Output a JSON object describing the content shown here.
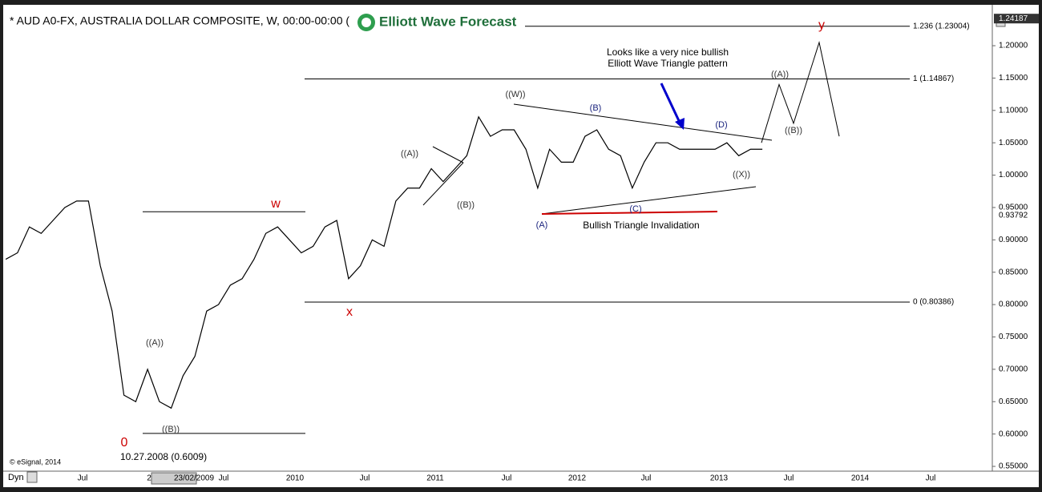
{
  "chart_data": {
    "type": "line",
    "title": "* AUD A0-FX, AUSTRALIA DOLLAR COMPOSITE, W, 00:00-00:00 (",
    "logo": "Elliott Wave Forecast",
    "source": "© eSignal, 2014",
    "corner_label": "Dyn",
    "color": "#000000",
    "x": [
      "2007-12",
      "2008-01",
      "2008-02",
      "2008-03",
      "2008-04",
      "2008-05",
      "2008-06",
      "2008-07",
      "2008-08",
      "2008-09",
      "2008-10",
      "2008-11",
      "2008-12",
      "2009-01",
      "2009-02",
      "2009-03",
      "2009-04",
      "2009-05",
      "2009-06",
      "2009-07",
      "2009-08",
      "2009-09",
      "2009-10",
      "2009-11",
      "2009-12",
      "2010-01",
      "2010-02",
      "2010-03",
      "2010-04",
      "2010-05",
      "2010-06",
      "2010-07",
      "2010-08",
      "2010-09",
      "2010-10",
      "2010-11",
      "2010-12",
      "2011-01",
      "2011-02",
      "2011-03",
      "2011-04",
      "2011-05",
      "2011-06",
      "2011-07",
      "2011-08",
      "2011-09",
      "2011-10",
      "2011-11",
      "2011-12",
      "2012-01",
      "2012-02",
      "2012-03",
      "2012-04",
      "2012-05",
      "2012-06",
      "2012-07",
      "2012-08",
      "2012-09",
      "2012-10",
      "2012-11",
      "2012-12",
      "2013-01",
      "2013-02",
      "2013-03",
      "2013-04"
    ],
    "values": [
      0.87,
      0.88,
      0.92,
      0.91,
      0.93,
      0.95,
      0.96,
      0.96,
      0.86,
      0.79,
      0.66,
      0.65,
      0.7,
      0.65,
      0.64,
      0.69,
      0.72,
      0.79,
      0.8,
      0.83,
      0.84,
      0.87,
      0.91,
      0.92,
      0.9,
      0.88,
      0.89,
      0.92,
      0.93,
      0.84,
      0.86,
      0.9,
      0.89,
      0.96,
      0.98,
      0.98,
      1.01,
      0.99,
      1.01,
      1.03,
      1.09,
      1.06,
      1.07,
      1.07,
      1.04,
      0.98,
      1.04,
      1.02,
      1.02,
      1.06,
      1.07,
      1.04,
      1.03,
      0.98,
      1.02,
      1.05,
      1.05,
      1.04,
      1.04,
      1.04,
      1.04,
      1.05,
      1.03,
      1.04,
      1.04
    ],
    "projection": [
      1.05,
      1.14,
      1.08,
      1.205,
      1.06
    ],
    "ylim": [
      0.5426,
      1.2607
    ],
    "yticks": [
      {
        "value": 0.55,
        "label": "0.55000"
      },
      {
        "value": 0.6,
        "label": "0.60000"
      },
      {
        "value": 0.65,
        "label": "0.65000"
      },
      {
        "value": 0.7,
        "label": "0.70000"
      },
      {
        "value": 0.75,
        "label": "0.75000"
      },
      {
        "value": 0.8,
        "label": "0.80000"
      },
      {
        "value": 0.85,
        "label": "0.85000"
      },
      {
        "value": 0.9,
        "label": "0.90000"
      },
      {
        "value": 0.95,
        "label": "0.95000"
      },
      {
        "value": 1.0,
        "label": "1.00000"
      },
      {
        "value": 1.05,
        "label": "1.05000"
      },
      {
        "value": 1.1,
        "label": "1.10000"
      },
      {
        "value": 1.15,
        "label": "1.15000"
      },
      {
        "value": 1.2,
        "label": "1.20000"
      }
    ],
    "axis_markers": [
      1.24187,
      0.93792
    ],
    "fib_levels": [
      {
        "value": 1.23004,
        "label": "1.236 (1.23004)"
      },
      {
        "value": 1.14867,
        "label": "1 (1.14867)"
      },
      {
        "value": 0.80386,
        "label": "0 (0.80386)"
      }
    ],
    "hlines": [
      0.9435,
      0.6009
    ],
    "x_axis_labels": [
      "Jul",
      "2",
      "23/02/2009",
      "Jul",
      "2010",
      "Jul",
      "2011",
      "Jul",
      "2012",
      "Jul",
      "2013",
      "Jul",
      "2014",
      "Jul"
    ],
    "annotations": [
      {
        "text": "0",
        "color": "#cc0000"
      },
      {
        "text": "10.27.2008  (0.6009)",
        "color": "#000000"
      },
      {
        "text": "((A))",
        "color": "#333333"
      },
      {
        "text": "((B))",
        "color": "#333333"
      },
      {
        "text": "w",
        "color": "#cc0000"
      },
      {
        "text": "x",
        "color": "#cc0000"
      },
      {
        "text": "((A))",
        "color": "#333333"
      },
      {
        "text": "((B))",
        "color": "#333333"
      },
      {
        "text": "((W))",
        "color": "#333333"
      },
      {
        "text": "(B)",
        "color": "#1a237e"
      },
      {
        "text": "(A)",
        "color": "#1a237e"
      },
      {
        "text": "(C)",
        "color": "#1a237e"
      },
      {
        "text": "(D)",
        "color": "#1a237e"
      },
      {
        "text": "((X))",
        "color": "#333333"
      },
      {
        "text": "((A))",
        "color": "#333333"
      },
      {
        "text": "((B))",
        "color": "#333333"
      },
      {
        "text": "y",
        "color": "#cc0000"
      },
      {
        "text": "Looks like a very nice bullish",
        "color": "#000000"
      },
      {
        "text": "Elliott Wave Triangle pattern",
        "color": "#000000"
      },
      {
        "text": "Bullish Triangle Invalidation",
        "color": "#000000"
      }
    ]
  }
}
